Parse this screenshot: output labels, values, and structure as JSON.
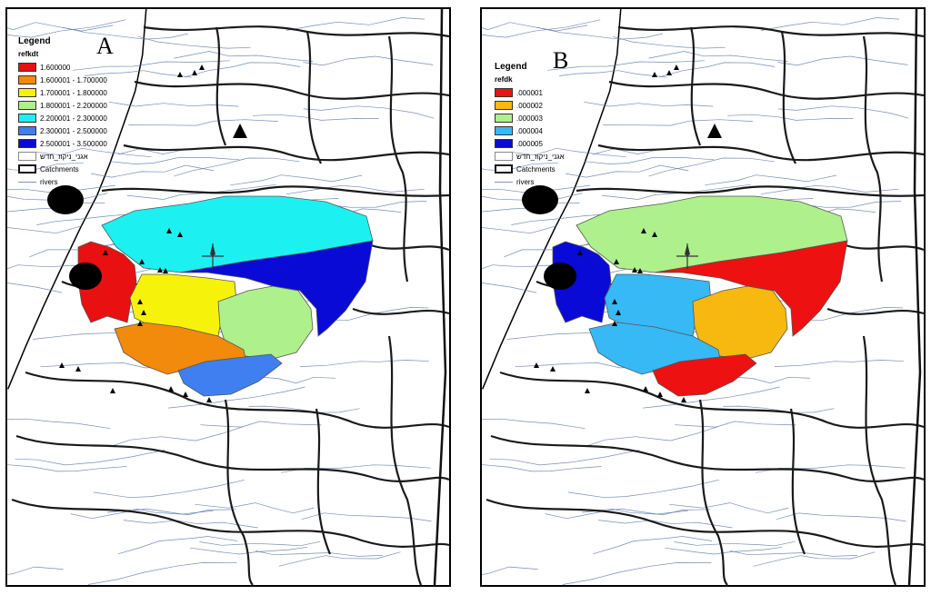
{
  "panels": [
    {
      "letter": "A",
      "legend": {
        "title": "Legend",
        "field": "refkdt",
        "classes": [
          {
            "label": "1.600000",
            "color": "#e81010"
          },
          {
            "label": "1.600001 - 1.700000",
            "color": "#f28a0c"
          },
          {
            "label": "1.700001 - 1.800000",
            "color": "#f7f20a"
          },
          {
            "label": "1.800001 - 2.200000",
            "color": "#aef08c"
          },
          {
            "label": "2.200001 - 2.300000",
            "color": "#1df0f0"
          },
          {
            "label": "2.300001 - 2.500000",
            "color": "#3f7ff0"
          },
          {
            "label": "2.500001 - 3.500000",
            "color": "#0a0ad6"
          }
        ],
        "other_items": [
          {
            "label": "אגני_ניקוז_חדש",
            "kind": "box-thin"
          },
          {
            "label": "Catchments",
            "kind": "box-thick"
          },
          {
            "label": "rivers",
            "kind": "line"
          }
        ]
      }
    },
    {
      "letter": "B",
      "legend": {
        "title": "Legend",
        "field": "refdk",
        "classes": [
          {
            "label": ".000001",
            "color": "#ee1111"
          },
          {
            "label": ".000002",
            "color": "#f7b90f"
          },
          {
            "label": ".000003",
            "color": "#aef08c"
          },
          {
            "label": ".000004",
            "color": "#37b9f5"
          },
          {
            "label": ".000005",
            "color": "#0a0ad6"
          }
        ],
        "other_items": [
          {
            "label": "אגני_ניקוז_חדש",
            "kind": "box-thin"
          },
          {
            "label": "Catchments",
            "kind": "box-thick"
          },
          {
            "label": "rivers",
            "kind": "line"
          }
        ]
      }
    }
  ],
  "colors": {
    "sea_coast": "#000000",
    "river": "#5e7aa6",
    "catchment_boundary": "#1a1a1a"
  }
}
